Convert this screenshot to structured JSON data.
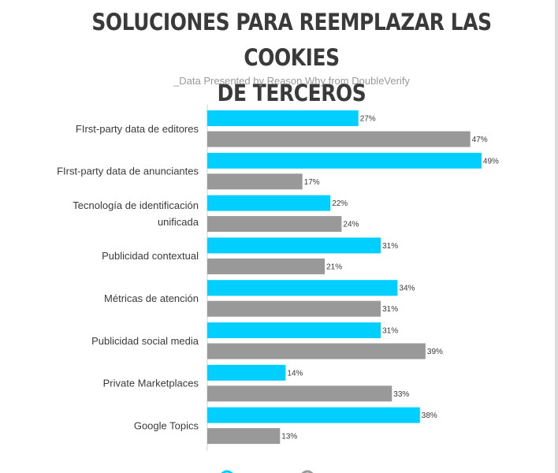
{
  "title_lines": [
    "SOLUCIONES PARA REEMPLAZAR LAS COOKIES",
    "DE TERCEROS"
  ],
  "subtitle": "_Data Presented by Reason Why from DoubleVerify",
  "colors": {
    "series_1": "#00cfff",
    "series_2": "#999999",
    "axis": "#d0d0d0"
  },
  "chart_data": {
    "type": "bar",
    "orientation": "horizontal",
    "categories": [
      [
        "FIrst-party data de editores"
      ],
      [
        "FIrst-party data de anunciantes"
      ],
      [
        "Tecnología de identificación",
        "unificada"
      ],
      [
        "Publicidad contextual"
      ],
      [
        "Métricas de atención"
      ],
      [
        "Publicidad social media"
      ],
      [
        "Private Marketplaces"
      ],
      [
        "Google Topics"
      ]
    ],
    "series": [
      {
        "values": [
          27,
          49,
          22,
          31,
          34,
          31,
          14,
          38
        ]
      },
      {
        "values": [
          47,
          17,
          24,
          21,
          31,
          39,
          33,
          13
        ]
      }
    ],
    "value_suffix": "%",
    "xlim": [
      0,
      50
    ],
    "grid": false,
    "legend": "bottom"
  }
}
